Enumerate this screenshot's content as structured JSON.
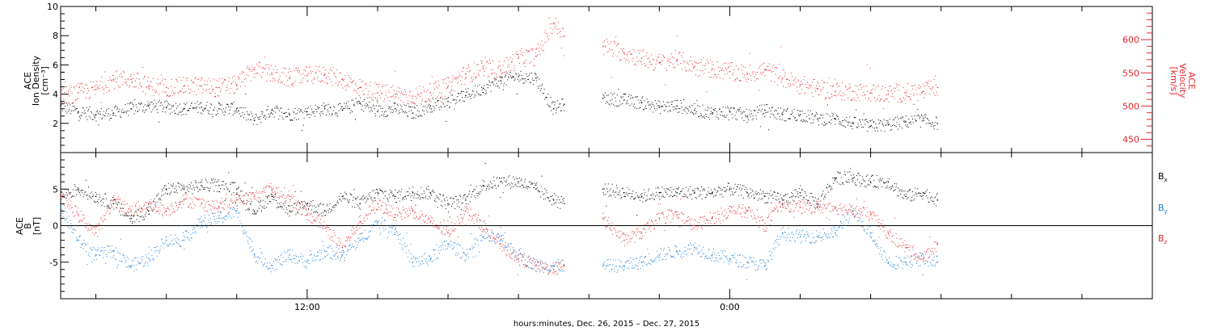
{
  "chart_data": [
    {
      "type": "scatter",
      "panel": "top",
      "ylabel_left": [
        "ACE",
        "Ion Density",
        "[cm⁻³]"
      ],
      "ylabel_right": [
        "ACE",
        "Velocity",
        "[km/s]"
      ],
      "ylim_left": [
        0,
        10
      ],
      "yticks_left": [
        2,
        4,
        6,
        8,
        10
      ],
      "ylim_right": [
        430,
        650
      ],
      "yticks_right": [
        450,
        500,
        550,
        600
      ],
      "x_range_hours": [
        5,
        36
      ],
      "data_end_hour": 29.9,
      "gap_hours": [
        19.3,
        20.4
      ],
      "series": [
        {
          "axis": "left",
          "color": "#000000",
          "x": [
            5.0,
            5.5,
            6.0,
            6.5,
            7.0,
            7.5,
            8.0,
            8.5,
            9.0,
            9.5,
            10.0,
            10.5,
            11.0,
            11.5,
            12.0,
            12.5,
            13.0,
            13.5,
            14.0,
            14.5,
            15.0,
            15.5,
            16.0,
            16.5,
            17.0,
            17.5,
            18.0,
            18.5,
            19.0,
            19.3,
            20.4,
            21.0,
            21.5,
            22.0,
            22.5,
            23.0,
            23.5,
            24.0,
            24.5,
            25.0,
            25.5,
            26.0,
            26.5,
            27.0,
            27.5,
            28.0,
            28.5,
            29.0,
            29.5,
            29.9
          ],
          "y": [
            3.2,
            2.8,
            2.6,
            2.7,
            3.0,
            3.2,
            3.1,
            3.0,
            3.1,
            3.0,
            3.0,
            2.2,
            2.9,
            2.6,
            2.8,
            3.0,
            2.9,
            3.4,
            2.8,
            3.0,
            2.7,
            3.2,
            3.5,
            3.9,
            4.4,
            4.9,
            5.2,
            5.1,
            3.0,
            3.3,
            3.7,
            3.6,
            3.4,
            3.1,
            3.2,
            2.9,
            2.7,
            2.8,
            2.5,
            2.9,
            2.6,
            2.6,
            2.3,
            2.3,
            2.0,
            1.8,
            1.9,
            2.1,
            2.2,
            2.0
          ]
        },
        {
          "axis": "right",
          "color": "#e8262b",
          "x": [
            5.0,
            5.5,
            6.0,
            6.5,
            7.0,
            7.5,
            8.0,
            8.5,
            9.0,
            9.5,
            10.0,
            10.5,
            11.0,
            11.5,
            12.0,
            12.5,
            13.0,
            13.5,
            14.0,
            14.5,
            15.0,
            15.5,
            16.0,
            16.5,
            17.0,
            17.5,
            18.0,
            18.5,
            19.0,
            19.3,
            20.4,
            21.0,
            21.5,
            22.0,
            22.5,
            23.0,
            23.5,
            24.0,
            24.5,
            25.0,
            25.5,
            26.0,
            26.5,
            27.0,
            27.5,
            28.0,
            28.5,
            29.0,
            29.5,
            29.9
          ],
          "y": [
            515,
            520,
            525,
            540,
            540,
            530,
            528,
            530,
            530,
            528,
            532,
            555,
            548,
            542,
            546,
            548,
            540,
            528,
            520,
            518,
            515,
            520,
            530,
            548,
            556,
            554,
            572,
            575,
            625,
            605,
            590,
            580,
            572,
            565,
            570,
            560,
            556,
            552,
            548,
            555,
            542,
            532,
            526,
            522,
            522,
            520,
            518,
            520,
            522,
            528
          ]
        }
      ]
    },
    {
      "type": "scatter",
      "panel": "bottom",
      "ylabel_left": [
        "ACE",
        "B",
        "[nT]"
      ],
      "ylim": [
        -10,
        10
      ],
      "yticks": [
        -5,
        0,
        5
      ],
      "x_range_hours": [
        5,
        36
      ],
      "xticks": [
        {
          "hour": 12,
          "label": "12:00"
        },
        {
          "hour": 24,
          "label": "0:00"
        }
      ],
      "xlabel": "hours:minutes, Dec. 26, 2015 – Dec. 27, 2015",
      "legend": [
        {
          "main": "B",
          "sub": "x",
          "color": "#000000"
        },
        {
          "main": "B",
          "sub": "y",
          "color": "#1c7fd6"
        },
        {
          "main": "B",
          "sub": "z",
          "color": "#e8262b"
        }
      ],
      "data_end_hour": 29.9,
      "gap_hours": [
        19.3,
        20.4
      ],
      "series": [
        {
          "name": "Bx",
          "color": "#000000",
          "x": [
            5.0,
            5.5,
            6.0,
            6.5,
            7.0,
            7.5,
            8.0,
            8.5,
            9.0,
            9.5,
            10.0,
            10.5,
            11.0,
            11.5,
            12.0,
            12.5,
            13.0,
            13.5,
            14.0,
            14.5,
            15.0,
            15.5,
            16.0,
            16.5,
            17.0,
            17.5,
            18.0,
            18.5,
            19.0,
            19.3,
            20.4,
            21.0,
            21.5,
            22.0,
            22.5,
            23.0,
            23.5,
            24.0,
            24.5,
            25.0,
            25.5,
            26.0,
            26.5,
            27.0,
            27.5,
            28.0,
            28.5,
            29.0,
            29.5,
            29.9
          ],
          "y": [
            4.0,
            5.0,
            4.0,
            3.0,
            1.0,
            2.0,
            5.0,
            5.0,
            5.5,
            5.5,
            5.0,
            2.0,
            4.0,
            2.0,
            3.0,
            2.0,
            4.0,
            3.0,
            4.5,
            4.0,
            4.5,
            4.5,
            3.0,
            3.5,
            5.5,
            6.0,
            6.0,
            5.0,
            3.5,
            3.0,
            5.0,
            4.5,
            4.0,
            4.5,
            4.5,
            4.5,
            4.5,
            5.0,
            4.5,
            4.0,
            3.5,
            4.5,
            3.0,
            6.5,
            6.5,
            6.0,
            6.0,
            4.0,
            4.5,
            3.5
          ]
        },
        {
          "name": "By",
          "color": "#1c7fd6",
          "x": [
            5.0,
            5.5,
            6.0,
            6.5,
            7.0,
            7.5,
            8.0,
            8.5,
            9.0,
            9.5,
            10.0,
            10.5,
            11.0,
            11.5,
            12.0,
            12.5,
            13.0,
            13.5,
            14.0,
            14.5,
            15.0,
            15.5,
            16.0,
            16.5,
            17.0,
            17.5,
            18.0,
            18.5,
            19.0,
            19.3,
            20.4,
            21.0,
            21.5,
            22.0,
            22.5,
            23.0,
            23.5,
            24.0,
            24.5,
            25.0,
            25.5,
            26.0,
            26.5,
            27.0,
            27.5,
            28.0,
            28.5,
            29.0,
            29.5,
            29.9
          ],
          "y": [
            2.5,
            -2.0,
            -4.0,
            -3.5,
            -5.5,
            -4.5,
            -2.0,
            -2.0,
            0.5,
            1.0,
            2.0,
            -4.0,
            -5.5,
            -4.0,
            -5.0,
            -3.5,
            -4.0,
            -2.0,
            0.5,
            -0.5,
            -5.0,
            -4.5,
            -2.5,
            -4.0,
            -1.5,
            -2.0,
            -4.0,
            -5.5,
            -5.5,
            -5.5,
            -5.5,
            -5.5,
            -5.0,
            -4.0,
            -3.5,
            -3.0,
            -4.0,
            -4.5,
            -5.0,
            -5.5,
            -1.0,
            -1.5,
            -1.5,
            -1.0,
            2.0,
            -1.0,
            -5.0,
            -5.0,
            -4.5,
            -5.0
          ]
        },
        {
          "name": "Bz",
          "color": "#e8262b",
          "x": [
            5.0,
            5.5,
            6.0,
            6.5,
            7.0,
            7.5,
            8.0,
            8.5,
            9.0,
            9.5,
            10.0,
            10.5,
            11.0,
            11.5,
            12.0,
            12.5,
            13.0,
            13.5,
            14.0,
            14.5,
            15.0,
            15.5,
            16.0,
            16.5,
            17.0,
            17.5,
            18.0,
            18.5,
            19.0,
            19.3,
            20.4,
            21.0,
            21.5,
            22.0,
            22.5,
            23.0,
            23.5,
            24.0,
            24.5,
            25.0,
            25.5,
            26.0,
            26.5,
            27.0,
            27.5,
            28.0,
            28.5,
            29.0,
            29.5,
            29.9
          ],
          "y": [
            4.0,
            1.5,
            -1.0,
            3.5,
            2.0,
            3.0,
            2.0,
            3.5,
            3.0,
            2.5,
            3.5,
            4.0,
            5.0,
            4.0,
            1.5,
            0.0,
            -3.0,
            0.5,
            3.0,
            1.5,
            2.0,
            0.5,
            -1.0,
            2.0,
            0.0,
            -2.5,
            -4.5,
            -5.5,
            -6.0,
            -5.5,
            1.0,
            -2.0,
            -1.0,
            1.0,
            1.5,
            0.0,
            1.0,
            2.0,
            2.0,
            0.0,
            3.0,
            2.5,
            2.5,
            2.5,
            2.0,
            1.5,
            -1.0,
            -3.0,
            -4.5,
            -2.5
          ]
        }
      ]
    }
  ]
}
